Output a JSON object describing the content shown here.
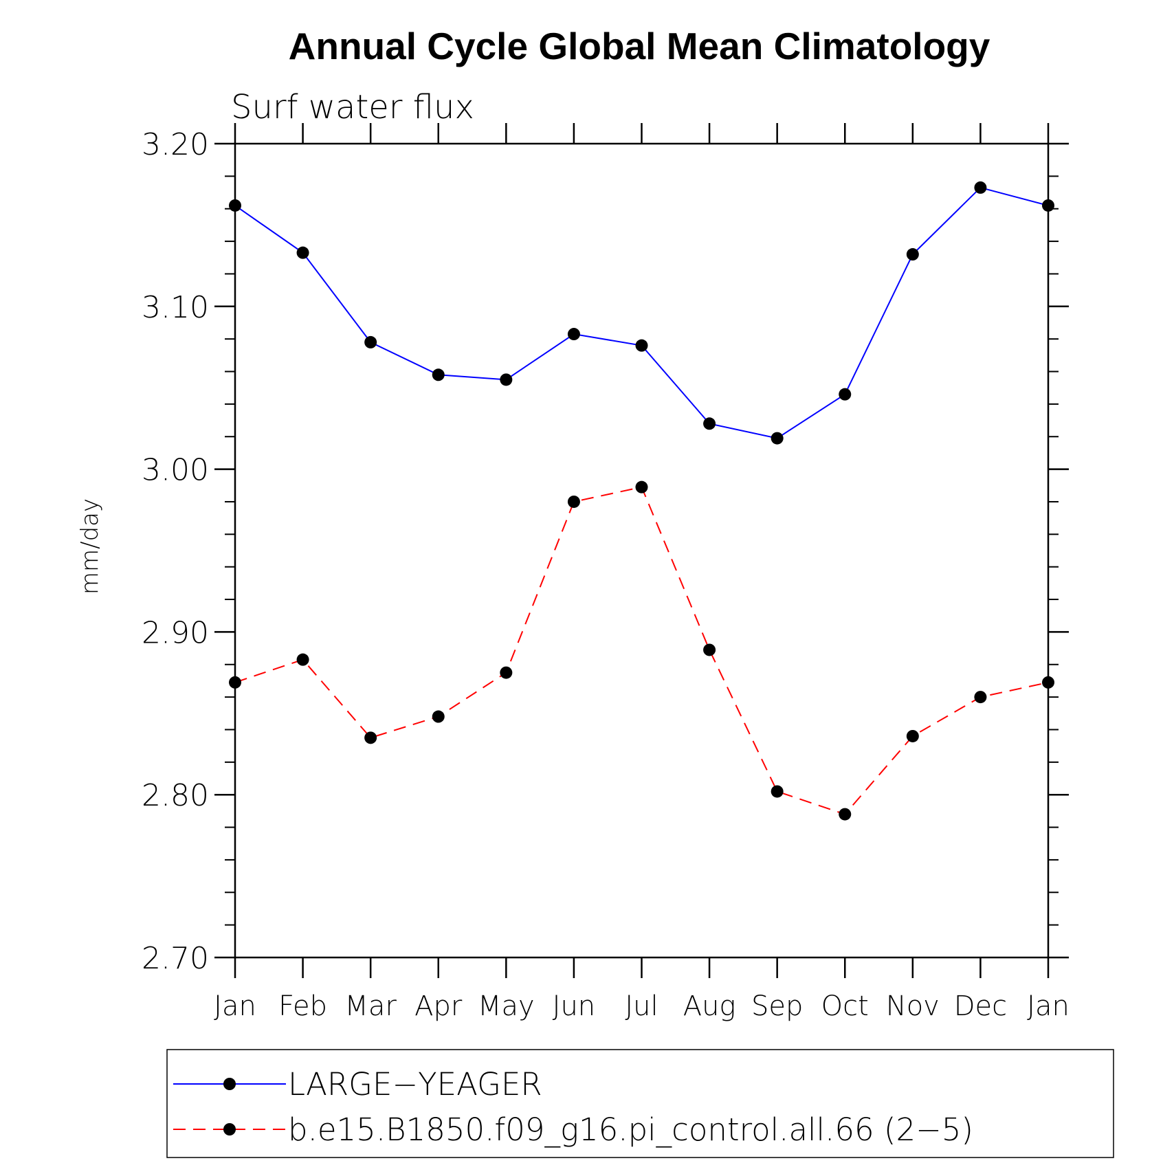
{
  "chart_data": {
    "type": "line",
    "title": "Annual Cycle Global Mean Climatology",
    "subtitle": "Surf water flux",
    "xlabel": "",
    "ylabel": "mm/day",
    "ylim": [
      2.7,
      3.2
    ],
    "y_ticks": [
      "3.20",
      "3.10",
      "3.00",
      "2.90",
      "2.80",
      "2.70"
    ],
    "y_tick_values": [
      3.2,
      3.1,
      3.0,
      2.9,
      2.8,
      2.7
    ],
    "categories": [
      "Jan",
      "Feb",
      "Mar",
      "Apr",
      "May",
      "Jun",
      "Jul",
      "Aug",
      "Sep",
      "Oct",
      "Nov",
      "Dec",
      "Jan"
    ],
    "grid": false,
    "legend_position": "bottom",
    "series": [
      {
        "name": "LARGE−YEAGER",
        "color": "#0000ff",
        "dash": "solid",
        "values": [
          3.162,
          3.133,
          3.078,
          3.058,
          3.055,
          3.083,
          3.076,
          3.028,
          3.019,
          3.046,
          3.132,
          3.173,
          3.162
        ]
      },
      {
        "name": "b.e15.B1850.f09_g16.pi_control.all.66 (2−5)",
        "color": "#ff0000",
        "dash": "dashed",
        "values": [
          2.869,
          2.883,
          2.835,
          2.848,
          2.875,
          2.98,
          2.989,
          2.889,
          2.802,
          2.788,
          2.836,
          2.86,
          2.869
        ]
      }
    ]
  }
}
